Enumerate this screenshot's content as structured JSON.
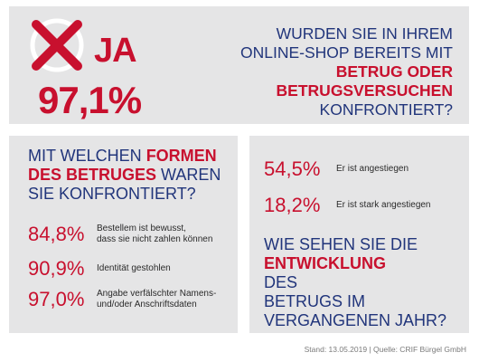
{
  "top": {
    "answer_label": "JA",
    "answer_percent": "97,1%",
    "question_lines": [
      {
        "text": "Wurden Sie in Ihrem",
        "emphasis": false
      },
      {
        "text": "Online-Shop bereits mit",
        "emphasis": false
      },
      {
        "text": "Betrug oder",
        "emphasis": true
      },
      {
        "text": "Betrugsversuchen",
        "emphasis": true
      },
      {
        "text": "konfrontiert?",
        "emphasis": false
      }
    ]
  },
  "left": {
    "question_part1": "Mit welchen ",
    "question_emph": "Formen",
    "question_part2": "des Betruges",
    "question_part3": " waren",
    "question_part4": "Sie konfrontiert?",
    "stats": [
      {
        "value": "84,8%",
        "label_line1": "Bestellem ist bewusst,",
        "label_line2": "dass sie nicht zahlen können"
      },
      {
        "value": "90,9%",
        "label_line1": "Identität gestohlen",
        "label_line2": ""
      },
      {
        "value": "97,0%",
        "label_line1": "Angabe verfälschter Namens-",
        "label_line2": "und/oder Anschriftsdaten"
      }
    ]
  },
  "right": {
    "stats": [
      {
        "value": "54,5%",
        "label": "Er ist angestiegen"
      },
      {
        "value": "18,2%",
        "label": "Er ist stark angestiegen"
      }
    ],
    "question_line1": "Wie sehen Sie die",
    "question_emph": "Entwicklung",
    "question_line2_rest": " des",
    "question_line3": "Betrugs im",
    "question_line4": "vergangenen Jahr?"
  },
  "footer": {
    "source": "Stand: 13.05.2019 | Quelle: CRIF Bürgel GmbH"
  },
  "colors": {
    "accent_red": "#c8102e",
    "text_blue": "#21357b",
    "panel_gray": "#e5e5e6"
  },
  "icons": {
    "checkbox_mark": "crossed-circle-icon"
  }
}
